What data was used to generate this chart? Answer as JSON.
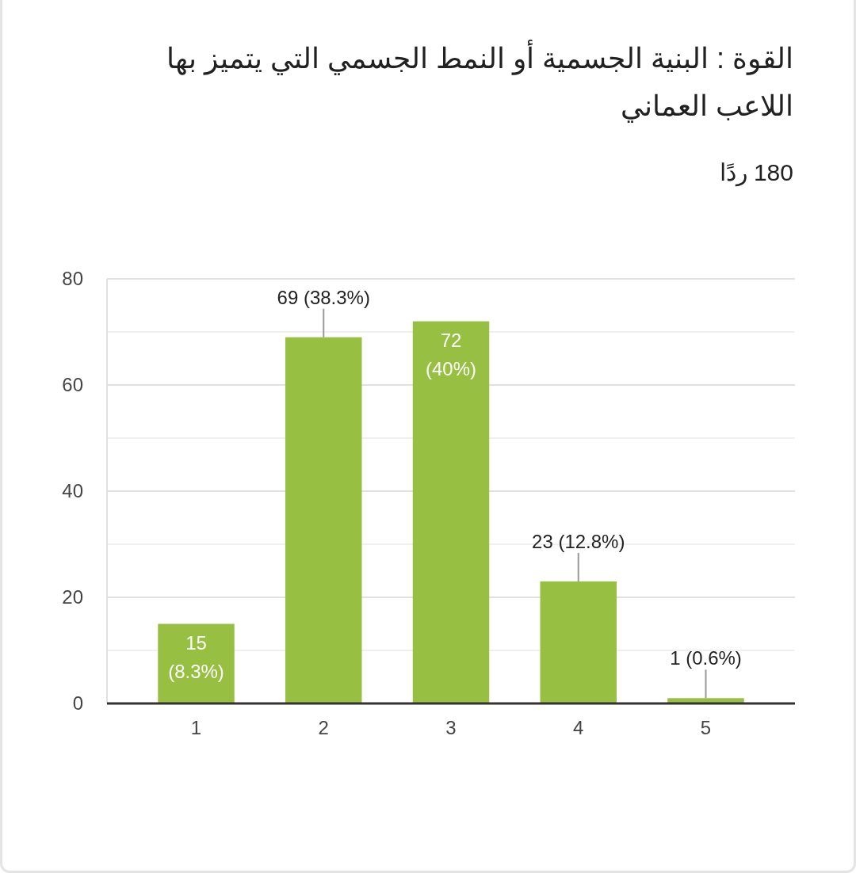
{
  "chart_data": {
    "type": "bar",
    "title": "القوة : البنية الجسمية أو النمط الجسمي التي يتميز بها اللاعب العماني",
    "subtitle": "180 ردًا",
    "categories": [
      "1",
      "2",
      "3",
      "4",
      "5"
    ],
    "values": [
      15,
      69,
      72,
      23,
      1
    ],
    "value_labels": [
      "15 (8.3%)",
      "69 (38.3%)",
      "72 (40%)",
      "23 (12.8%)",
      "1 (0.6%)"
    ],
    "color": "#97bf41",
    "ylim": [
      0,
      80
    ],
    "yticks": [
      0,
      {
        "value": 10,
        "label": null
      },
      20,
      {
        "value": 30,
        "label": null
      },
      40,
      {
        "value": 50,
        "label": null
      },
      60,
      {
        "value": 70,
        "label": null
      },
      80
    ],
    "grid": true
  }
}
